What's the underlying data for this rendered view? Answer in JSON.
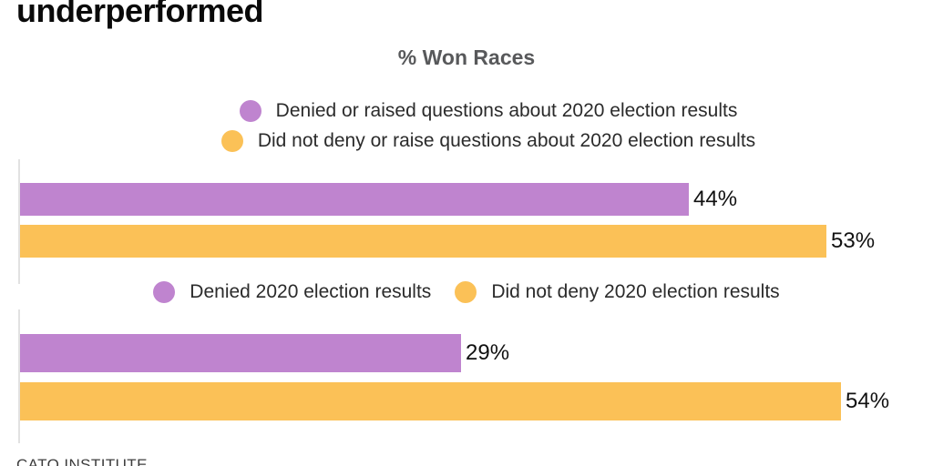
{
  "header": {
    "title": "underperformed",
    "subtitle": "% Won Races"
  },
  "source": "CATO INSTITUTE",
  "colors": {
    "denier_purple": "#bf84cf",
    "non_denier_yellow": "#fbc157",
    "axis_gray": "#e2e2e2",
    "subtitle_gray": "#58595b",
    "title_black": "#0a0a0a"
  },
  "chart_data": {
    "type": "bar",
    "orientation": "horizontal",
    "title": "% Won Races",
    "unit": "%",
    "xlim": [
      0,
      60
    ],
    "grid": false,
    "legend_position": "top-of-each-group",
    "groups": [
      {
        "legend": [
          {
            "label": "Denied or raised questions about 2020 election results",
            "color": "#bf84cf"
          },
          {
            "label": "Did not deny or raise questions about 2020 election results",
            "color": "#fbc157"
          }
        ],
        "bars": [
          {
            "series": "Denied or raised questions about 2020 election results",
            "value": 44,
            "label": "44%",
            "color": "#bf84cf"
          },
          {
            "series": "Did not deny or raise questions about 2020 election results",
            "value": 53,
            "label": "53%",
            "color": "#fbc157"
          }
        ]
      },
      {
        "legend": [
          {
            "label": "Denied 2020 election results",
            "color": "#bf84cf"
          },
          {
            "label": "Did not deny 2020 election results",
            "color": "#fbc157"
          }
        ],
        "bars": [
          {
            "series": "Denied 2020 election results",
            "value": 29,
            "label": "29%",
            "color": "#bf84cf"
          },
          {
            "series": "Did not deny 2020 election results",
            "value": 54,
            "label": "54%",
            "color": "#fbc157"
          }
        ]
      }
    ]
  }
}
